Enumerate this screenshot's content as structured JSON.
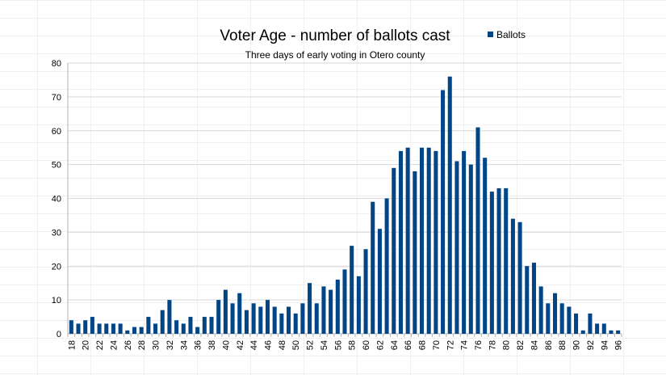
{
  "chart_data": {
    "type": "bar",
    "title": "Voter Age - number of ballots cast",
    "subtitle": "Three days of early voting in Otero county",
    "xlabel": "",
    "ylabel": "",
    "ylim": [
      0,
      80
    ],
    "yticks": [
      0,
      10,
      20,
      30,
      40,
      50,
      60,
      70,
      80
    ],
    "grid": true,
    "legend_position": "top-right",
    "bar_color": "#004586",
    "series": [
      {
        "name": "Ballots",
        "x": [
          18,
          19,
          20,
          21,
          22,
          23,
          24,
          25,
          26,
          27,
          28,
          29,
          30,
          31,
          32,
          33,
          34,
          35,
          36,
          37,
          38,
          39,
          40,
          41,
          42,
          43,
          44,
          45,
          46,
          47,
          48,
          49,
          50,
          51,
          52,
          53,
          54,
          55,
          56,
          57,
          58,
          59,
          60,
          61,
          62,
          63,
          64,
          65,
          66,
          67,
          68,
          69,
          70,
          71,
          72,
          73,
          74,
          75,
          76,
          77,
          78,
          79,
          80,
          81,
          82,
          83,
          84,
          85,
          86,
          87,
          88,
          89,
          90,
          91,
          92,
          93,
          94,
          95,
          96
        ],
        "values": [
          4,
          3,
          4,
          5,
          3,
          3,
          3,
          3,
          1,
          2,
          2,
          5,
          3,
          7,
          10,
          4,
          3,
          5,
          2,
          5,
          5,
          10,
          13,
          9,
          12,
          7,
          9,
          8,
          10,
          8,
          6,
          8,
          6,
          9,
          15,
          9,
          14,
          13,
          16,
          19,
          26,
          17,
          25,
          39,
          31,
          40,
          49,
          54,
          55,
          48,
          55,
          55,
          54,
          72,
          76,
          51,
          54,
          50,
          61,
          52,
          42,
          43,
          43,
          34,
          33,
          20,
          21,
          14,
          9,
          12,
          9,
          8,
          6,
          1,
          6,
          3,
          3,
          1,
          1
        ]
      }
    ],
    "x_tick_labels": [
      "18",
      "20",
      "22",
      "24",
      "26",
      "28",
      "30",
      "32",
      "34",
      "36",
      "38",
      "40",
      "42",
      "44",
      "46",
      "48",
      "50",
      "52",
      "54",
      "56",
      "58",
      "60",
      "62",
      "64",
      "66",
      "68",
      "70",
      "72",
      "74",
      "76",
      "78",
      "80",
      "82",
      "84",
      "86",
      "88",
      "90",
      "92",
      "94",
      "96"
    ]
  }
}
